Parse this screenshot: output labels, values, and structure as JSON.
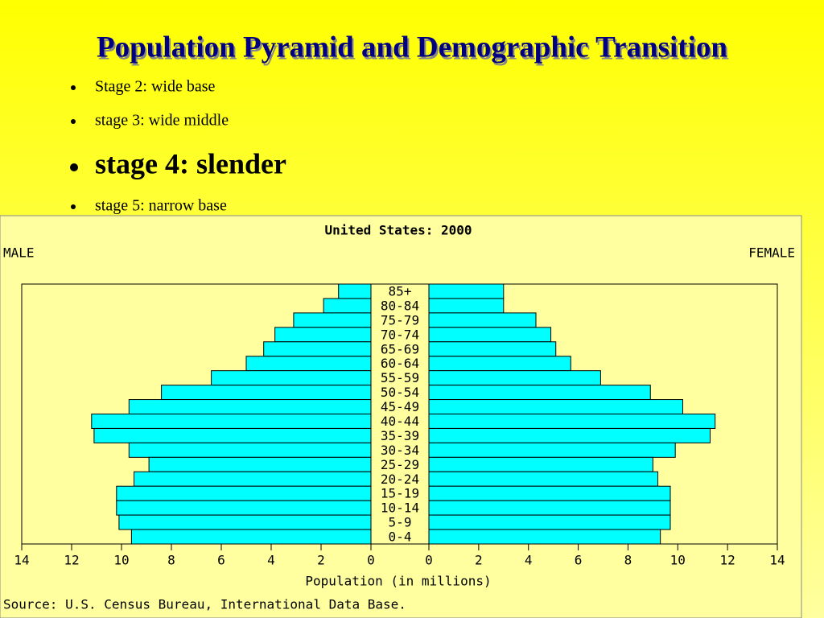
{
  "slide": {
    "title": "Population Pyramid and Demographic Transition",
    "bullets": [
      "Stage 2: wide base",
      "stage 3: wide middle",
      "stage 4: slender",
      "stage 5: narrow base"
    ]
  },
  "chart_data": {
    "type": "pyramid",
    "title": "United States: 2000",
    "x_label": "Population (in millions)",
    "source": "Source: U.S. Census Bureau, International Data Base.",
    "categories": [
      "85+",
      "80-84",
      "75-79",
      "70-74",
      "65-69",
      "60-64",
      "55-59",
      "50-54",
      "45-49",
      "40-44",
      "35-39",
      "30-34",
      "25-29",
      "20-24",
      "15-19",
      "10-14",
      "5-9",
      "0-4"
    ],
    "series": [
      {
        "name": "MALE",
        "color": "#00ffff",
        "values": [
          1.3,
          1.9,
          3.1,
          3.85,
          4.3,
          5.0,
          6.4,
          8.4,
          9.7,
          11.2,
          11.1,
          9.7,
          8.9,
          9.5,
          10.2,
          10.2,
          10.1,
          9.6
        ]
      },
      {
        "name": "FEMALE",
        "color": "#00ffff",
        "values": [
          3.0,
          3.0,
          4.3,
          4.9,
          5.1,
          5.7,
          6.9,
          8.9,
          10.2,
          11.5,
          11.3,
          9.9,
          9.0,
          9.2,
          9.7,
          9.7,
          9.7,
          9.3
        ]
      }
    ],
    "xlim": [
      0,
      14
    ],
    "xticks": [
      0,
      2,
      4,
      6,
      8,
      10,
      12,
      14
    ]
  }
}
